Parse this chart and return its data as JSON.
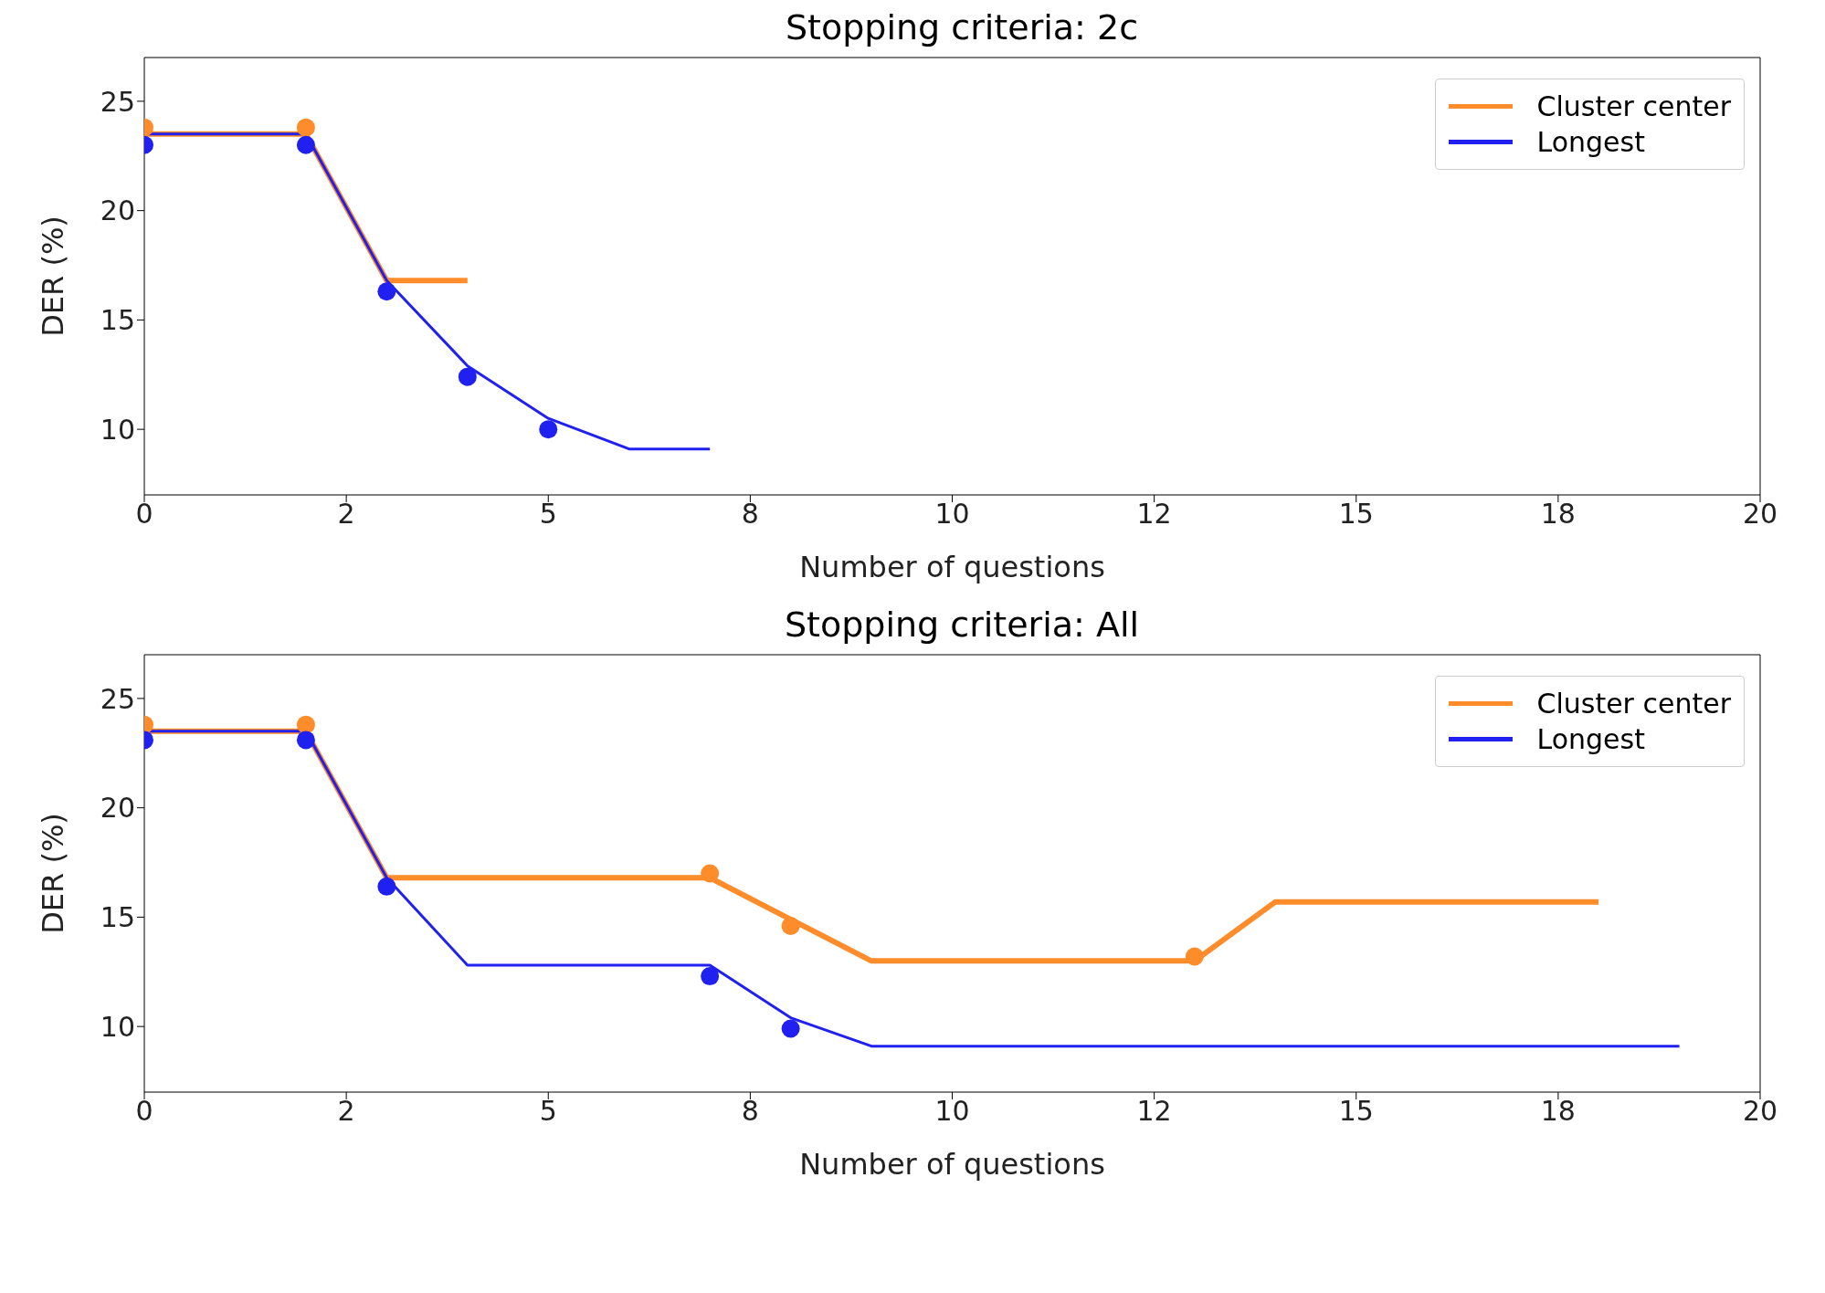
{
  "chart_data": [
    {
      "type": "line",
      "title": "Stopping criteria: 2c",
      "xlabel": "Number of questions",
      "ylabel": "DER (%)",
      "xlim": [
        0,
        20
      ],
      "xticks": [
        0,
        {
          "value": 2.5,
          "label": "2"
        },
        5,
        {
          "value": 7.5,
          "label": "8"
        },
        10,
        {
          "value": 12.5,
          "label": "12"
        },
        15,
        {
          "value": 17.5,
          "label": "18"
        },
        20
      ],
      "ylim": [
        7,
        27
      ],
      "yticks": [
        10,
        15,
        20,
        25
      ],
      "legend": "top right",
      "grid": false,
      "series": [
        {
          "name": "Cluster center",
          "color": "#ff8c2a",
          "type": "line",
          "marker": "none",
          "x": [
            0,
            2,
            3,
            4
          ],
          "values": [
            23.5,
            23.5,
            16.8,
            16.8
          ]
        },
        {
          "name": "Longest",
          "color": "#2020f0",
          "type": "line",
          "marker": "none",
          "x": [
            0,
            2,
            3,
            4,
            5,
            6,
            7
          ],
          "values": [
            23.5,
            23.5,
            16.8,
            12.9,
            10.5,
            9.1,
            9.1
          ]
        },
        {
          "color": "#ff8c2a",
          "type": "scatter",
          "marker": "circle",
          "x": [
            0,
            2
          ],
          "values": [
            23.8,
            23.8
          ]
        },
        {
          "color": "#2020f0",
          "type": "scatter",
          "marker": "circle",
          "x": [
            0,
            2,
            3,
            4,
            5
          ],
          "values": [
            23,
            23,
            16.3,
            12.4,
            10
          ]
        }
      ]
    },
    {
      "type": "line",
      "title": "Stopping criteria: All",
      "xlabel": "Number of questions",
      "ylabel": "DER (%)",
      "xlim": [
        0,
        20
      ],
      "xticks": [
        0,
        {
          "value": 2.5,
          "label": "2"
        },
        5,
        {
          "value": 7.5,
          "label": "8"
        },
        10,
        {
          "value": 12.5,
          "label": "12"
        },
        15,
        {
          "value": 17.5,
          "label": "18"
        },
        20
      ],
      "ylim": [
        7,
        27
      ],
      "yticks": [
        10,
        15,
        20,
        25
      ],
      "legend": "top right",
      "grid": false,
      "series": [
        {
          "name": "Cluster center",
          "color": "#ff8c2a",
          "type": "line",
          "marker": "none",
          "x": [
            0,
            2,
            3,
            7,
            8,
            9,
            13,
            14,
            18
          ],
          "values": [
            23.5,
            23.5,
            16.8,
            16.8,
            14.9,
            13,
            13,
            15.7,
            15.7
          ]
        },
        {
          "name": "Longest",
          "color": "#2020f0",
          "type": "line",
          "marker": "none",
          "x": [
            0,
            2,
            3,
            4,
            7,
            8,
            9,
            19
          ],
          "values": [
            23.5,
            23.5,
            16.8,
            12.8,
            12.8,
            10.4,
            9.1,
            9.1
          ]
        },
        {
          "color": "#ff8c2a",
          "type": "scatter",
          "marker": "circle",
          "x": [
            0,
            2,
            7,
            8,
            13
          ],
          "values": [
            23.8,
            23.8,
            17,
            14.6,
            13.2
          ]
        },
        {
          "color": "#2020f0",
          "type": "scatter",
          "marker": "circle",
          "x": [
            0,
            2,
            3,
            7,
            8
          ],
          "values": [
            23.1,
            23.1,
            16.4,
            12.3,
            9.9
          ]
        }
      ]
    }
  ]
}
